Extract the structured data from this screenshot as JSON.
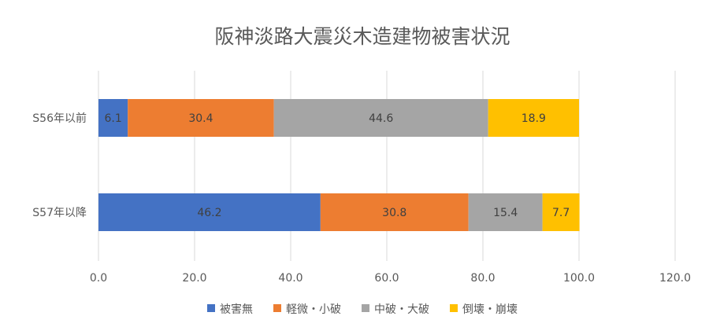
{
  "chart_data": {
    "type": "bar",
    "orientation": "horizontal",
    "stacked": true,
    "title": "阪神淡路大震災木造建物被害状況",
    "categories": [
      "S56年以前",
      "S57年以降"
    ],
    "series": [
      {
        "name": "被害無",
        "values": [
          6.1,
          46.2
        ],
        "color": "#4472C4"
      },
      {
        "name": "軽微・小破",
        "values": [
          30.4,
          30.8
        ],
        "color": "#ED7D31"
      },
      {
        "name": "中破・大破",
        "values": [
          44.6,
          15.4
        ],
        "color": "#A5A5A5"
      },
      {
        "name": "倒壊・崩壊",
        "values": [
          18.9,
          7.7
        ],
        "color": "#FFC000"
      }
    ],
    "xlim": [
      0,
      120
    ],
    "xticks": [
      0,
      20,
      40,
      60,
      80,
      100,
      120
    ],
    "xtick_labels": [
      "0.0",
      "20.0",
      "40.0",
      "60.0",
      "80.0",
      "100.0",
      "120.0"
    ],
    "xlabel": "",
    "ylabel": "",
    "grid": true,
    "legend_position": "bottom",
    "data_labels": true
  }
}
